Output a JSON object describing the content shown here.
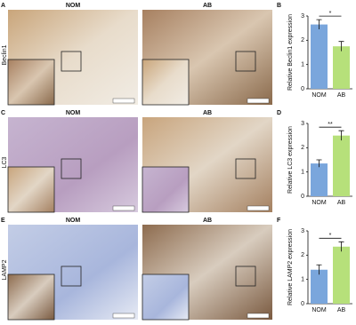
{
  "panels": {
    "rows": [
      {
        "letter": "A",
        "label": "Beclin1",
        "images": [
          "NOM",
          "AB"
        ]
      },
      {
        "letter": "C",
        "label": "LC3",
        "images": [
          "NOM",
          "AB"
        ]
      },
      {
        "letter": "E",
        "label": "LAMP2",
        "images": [
          "NOM",
          "AB"
        ]
      }
    ]
  },
  "chart_data": [
    {
      "type": "bar",
      "panel_label": "B",
      "y_label": "Relative Beclin1 expression",
      "categories": [
        "NOM",
        "AB"
      ],
      "values": [
        2.65,
        1.75
      ],
      "errors": [
        0.2,
        0.2
      ],
      "colors": [
        "#7aa6dc",
        "#b6e07a"
      ],
      "ylim": [
        0,
        3
      ],
      "yticks": [
        0,
        1,
        2,
        3
      ],
      "annotation": "*"
    },
    {
      "type": "bar",
      "panel_label": "D",
      "y_label": "Relative LC3 expression",
      "categories": [
        "NOM",
        "AB"
      ],
      "values": [
        1.35,
        2.5
      ],
      "errors": [
        0.15,
        0.2
      ],
      "colors": [
        "#7aa6dc",
        "#b6e07a"
      ],
      "ylim": [
        0,
        3
      ],
      "yticks": [
        0,
        1,
        2,
        3
      ],
      "annotation": "**"
    },
    {
      "type": "bar",
      "panel_label": "F",
      "y_label": "Relative LAMP2 expression",
      "categories": [
        "NOM",
        "AB"
      ],
      "values": [
        1.4,
        2.35
      ],
      "errors": [
        0.2,
        0.2
      ],
      "colors": [
        "#7aa6dc",
        "#b6e07a"
      ],
      "ylim": [
        0,
        3
      ],
      "yticks": [
        0,
        1,
        2,
        3
      ],
      "annotation": "*"
    }
  ]
}
